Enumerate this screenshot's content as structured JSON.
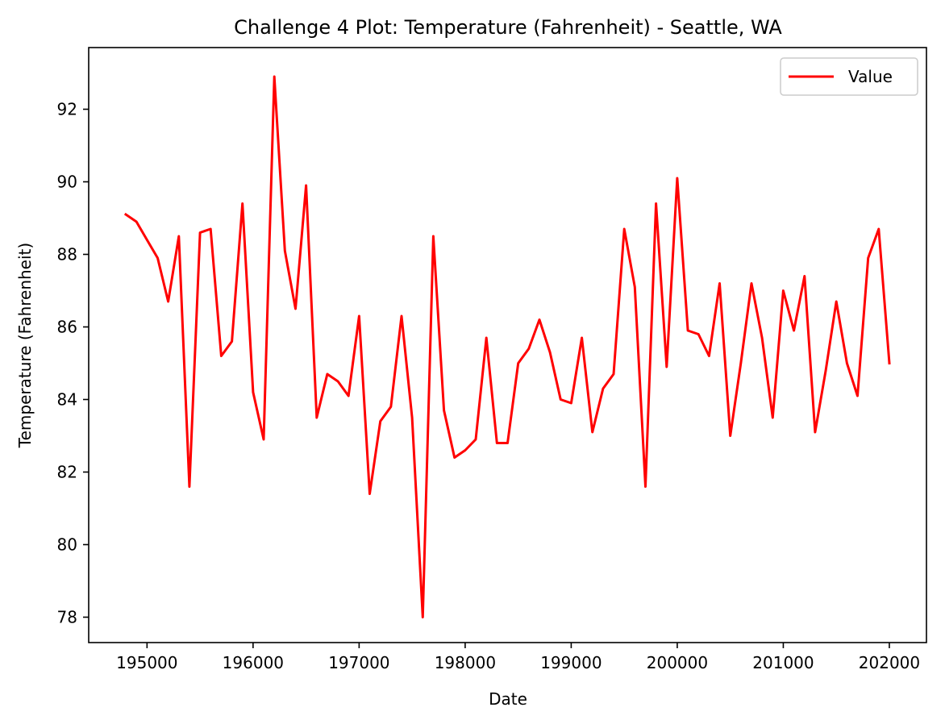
{
  "chart_data": {
    "type": "line",
    "title": "Challenge 4 Plot: Temperature (Fahrenheit) - Seattle, WA",
    "xlabel": "Date",
    "ylabel": "Temperature (Fahrenheit)",
    "xlim": [
      194450,
      202350
    ],
    "ylim": [
      77.3,
      93.7
    ],
    "xticks": [
      195000,
      196000,
      197000,
      198000,
      199000,
      200000,
      201000,
      202000
    ],
    "yticks": [
      78,
      80,
      82,
      84,
      86,
      88,
      90,
      92
    ],
    "legend_position": "upper right",
    "grid": false,
    "series": [
      {
        "name": "Value",
        "color": "#ff0000",
        "x": [
          194800,
          194900,
          195000,
          195100,
          195200,
          195300,
          195400,
          195500,
          195600,
          195700,
          195800,
          195900,
          196000,
          196100,
          196200,
          196300,
          196400,
          196500,
          196600,
          196700,
          196800,
          196900,
          197000,
          197100,
          197200,
          197300,
          197400,
          197500,
          197600,
          197700,
          197800,
          197900,
          198000,
          198100,
          198200,
          198300,
          198400,
          198500,
          198600,
          198700,
          198800,
          198900,
          199000,
          199100,
          199200,
          199300,
          199400,
          199500,
          199600,
          199700,
          199800,
          199900,
          200000,
          200100,
          200200,
          200300,
          200400,
          200500,
          200600,
          200700,
          200800,
          200900,
          201000,
          201100,
          201200,
          201300,
          201400,
          201500,
          201600,
          201700,
          201800,
          201900,
          202000
        ],
        "values": [
          89.1,
          88.9,
          88.4,
          87.9,
          86.7,
          88.5,
          81.6,
          88.6,
          88.7,
          85.2,
          85.6,
          89.4,
          84.2,
          82.9,
          92.9,
          88.1,
          86.5,
          89.9,
          83.5,
          84.7,
          84.5,
          84.1,
          86.3,
          81.4,
          83.4,
          83.8,
          86.3,
          83.5,
          78.0,
          88.5,
          83.7,
          82.4,
          82.6,
          82.9,
          85.7,
          82.8,
          82.8,
          85.0,
          85.4,
          86.2,
          85.3,
          84.0,
          83.9,
          85.7,
          83.1,
          84.3,
          84.7,
          88.7,
          87.1,
          81.6,
          89.4,
          84.9,
          90.1,
          85.9,
          85.8,
          85.2,
          87.2,
          83.0,
          85.0,
          87.2,
          85.7,
          83.5,
          87.0,
          85.9,
          87.4,
          83.1,
          84.8,
          86.7,
          85.0,
          84.1,
          87.9,
          88.7,
          85.0
        ]
      }
    ]
  }
}
